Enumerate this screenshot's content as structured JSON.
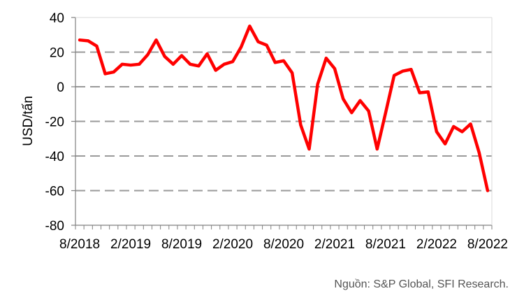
{
  "chart_data": {
    "type": "line",
    "ylabel": "USD/tấn",
    "ylim": [
      -80,
      40
    ],
    "yticks": [
      40,
      20,
      0,
      -20,
      -40,
      -60,
      -80
    ],
    "grid": "dashed horizontal",
    "x_tick_labels": [
      "8/2018",
      "2/2019",
      "8/2019",
      "2/2020",
      "8/2020",
      "2/2021",
      "8/2021",
      "2/2022",
      "8/2022"
    ],
    "series": [
      {
        "color": "#ff0000",
        "x": [
          "8/2018",
          "9/2018",
          "10/2018",
          "11/2018",
          "12/2018",
          "1/2019",
          "2/2019",
          "3/2019",
          "4/2019",
          "5/2019",
          "6/2019",
          "7/2019",
          "8/2019",
          "9/2019",
          "10/2019",
          "11/2019",
          "12/2019",
          "1/2020",
          "2/2020",
          "3/2020",
          "4/2020",
          "5/2020",
          "6/2020",
          "7/2020",
          "8/2020",
          "9/2020",
          "10/2020",
          "11/2020",
          "12/2020",
          "1/2021",
          "2/2021",
          "3/2021",
          "4/2021",
          "5/2021",
          "6/2021",
          "7/2021",
          "8/2021",
          "9/2021",
          "10/2021",
          "11/2021",
          "12/2021",
          "1/2022",
          "2/2022",
          "3/2022",
          "4/2022",
          "5/2022",
          "6/2022",
          "7/2022",
          "8/2022"
        ],
        "values": [
          27,
          26.5,
          23.5,
          7.5,
          8.5,
          13,
          12.5,
          13,
          18.5,
          27,
          17.5,
          13,
          18,
          13,
          12,
          19,
          9.5,
          13,
          14.5,
          23,
          35,
          26,
          24,
          14,
          15,
          8,
          -22,
          -36,
          1.5,
          16.5,
          10.5,
          -7,
          -15,
          -8,
          -14,
          -36,
          -15,
          6.5,
          9,
          10,
          -3.5,
          -3,
          -26,
          -33,
          -23,
          -26,
          -21.5,
          -38,
          -60
        ]
      }
    ]
  },
  "source": "Nguồn: S&P Global, SFI Research."
}
